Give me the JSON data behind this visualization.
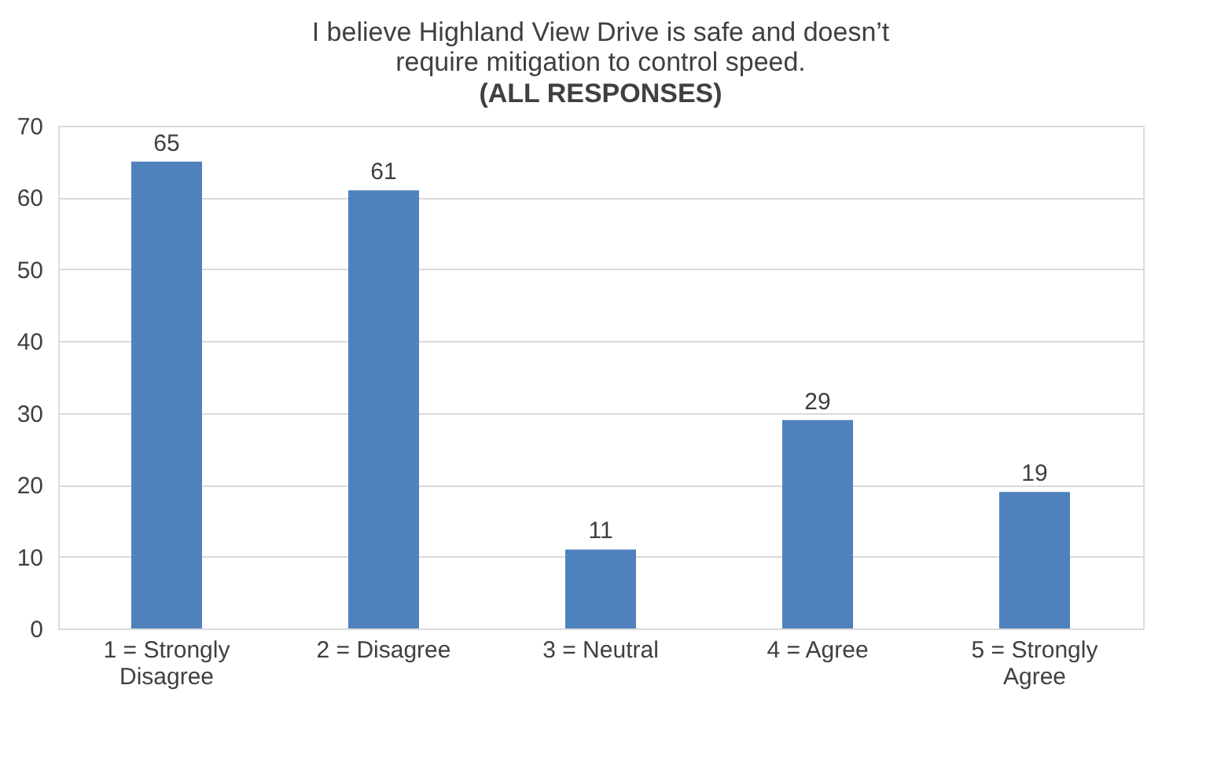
{
  "chart_data": {
    "type": "bar",
    "title": "I believe Highland View Drive is safe and doesn’t require mitigation to control speed.",
    "subtitle": "(ALL RESPONSES)",
    "categories": [
      "1 = Strongly Disagree",
      "2 = Disagree",
      "3 = Neutral",
      "4 = Agree",
      "5 = Strongly Agree"
    ],
    "values": [
      65,
      61,
      11,
      29,
      19
    ],
    "color": "#4f81bd",
    "ylim": [
      0,
      70
    ],
    "yticks": [
      0,
      10,
      20,
      30,
      40,
      50,
      60,
      70
    ],
    "grid": "y",
    "data_labels": true
  }
}
